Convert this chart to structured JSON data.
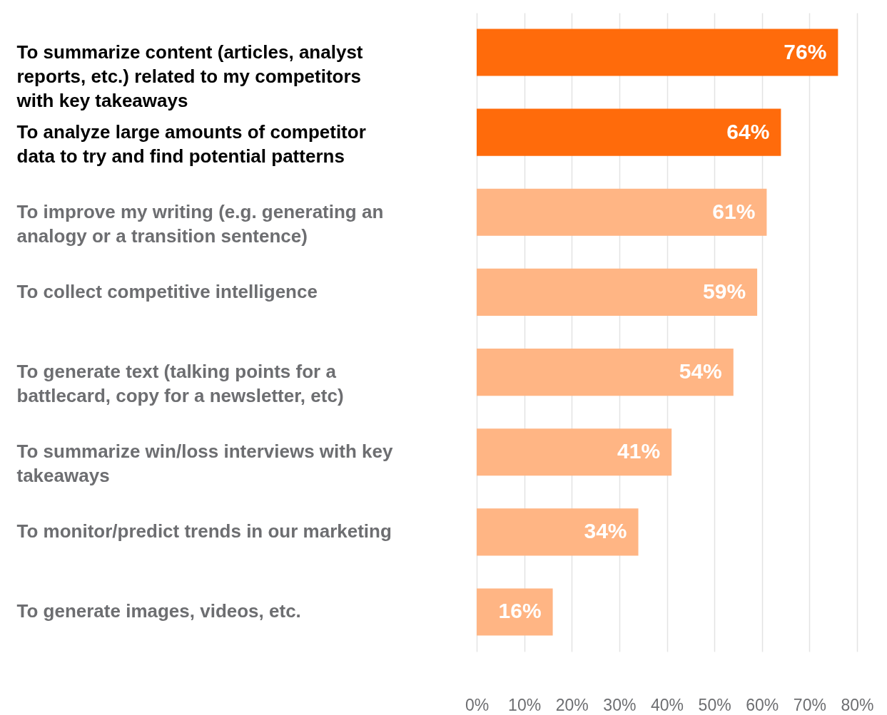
{
  "chart_data": {
    "type": "bar",
    "orientation": "horizontal",
    "categories": [
      "To summarize content (articles, analyst reports, etc.) related to my competitors with key takeaways",
      "To analyze large amounts of competitor data to try and find potential patterns",
      "To improve my writing (e.g. generating an analogy or a transition sentence)",
      "To collect competitive intelligence",
      "To generate text (talking points for a battlecard, copy for a newsletter, etc)",
      "To summarize win/loss interviews with key takeaways",
      "To monitor/predict trends in our marketing",
      "To generate images, videos, etc."
    ],
    "values": [
      76,
      64,
      61,
      59,
      54,
      41,
      34,
      16
    ],
    "value_labels": [
      "76%",
      "64%",
      "61%",
      "59%",
      "54%",
      "41%",
      "34%",
      "16%"
    ],
    "colors": [
      "#ff6b0b",
      "#ff6b0b",
      "#ffb584",
      "#ffb584",
      "#ffb584",
      "#ffb584",
      "#ffb584",
      "#ffb584"
    ],
    "xlim": [
      0,
      80
    ],
    "xticks": [
      {
        "value": 0,
        "label": "0%"
      },
      {
        "value": 10,
        "label": "10%"
      },
      {
        "value": 20,
        "label": "20%"
      },
      {
        "value": 30,
        "label": "30%"
      },
      {
        "value": 40,
        "label": "40%"
      },
      {
        "value": 50,
        "label": "50%"
      },
      {
        "value": 60,
        "label": "60%"
      },
      {
        "value": 70,
        "label": "70%"
      },
      {
        "value": 80,
        "label": "80%"
      }
    ],
    "grid": "x"
  }
}
